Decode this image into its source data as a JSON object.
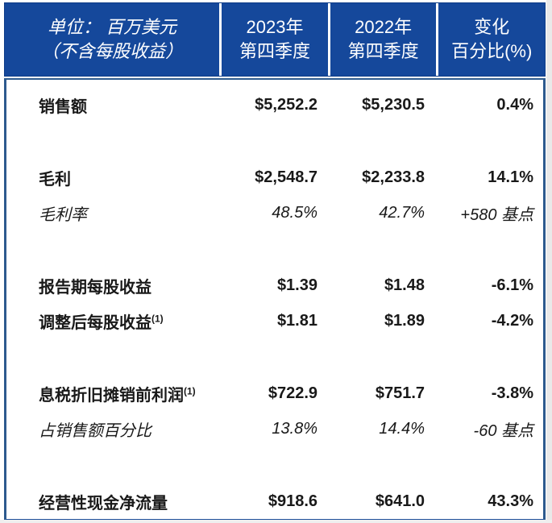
{
  "header": {
    "unit_line1": "单位： 百万美元",
    "unit_line2": "（不含每股收益）",
    "col_2023_line1": "2023年",
    "col_2023_line2": "第四季度",
    "col_2022_line1": "2022年",
    "col_2022_line2": "第四季度",
    "col_change_line1": "变化",
    "col_change_line2": "百分比(%)"
  },
  "colors": {
    "header_bg": "#15489B",
    "header_text": "#FFFFFF",
    "body_border": "#2D5A8E",
    "bottom_border": "#1D4F9A",
    "body_text": "#191919"
  },
  "rows": [
    {
      "label": "销售额",
      "sup": "",
      "q4_2023": "$5,252.2",
      "q4_2022": "$5,230.5",
      "change": "0.4%",
      "emphasis": "bold"
    },
    {
      "label": "毛利",
      "sup": "",
      "q4_2023": "$2,548.7",
      "q4_2022": "$2,233.8",
      "change": "14.1%",
      "emphasis": "bold"
    },
    {
      "label": "毛利率",
      "sup": "",
      "q4_2023": "48.5%",
      "q4_2022": "42.7%",
      "change": "+580 基点",
      "emphasis": "italic"
    },
    {
      "label": "报告期每股收益",
      "sup": "",
      "q4_2023": "$1.39",
      "q4_2022": "$1.48",
      "change": "-6.1%",
      "emphasis": "bold"
    },
    {
      "label": "调整后每股收益",
      "sup": "(1)",
      "q4_2023": "$1.81",
      "q4_2022": "$1.89",
      "change": "-4.2%",
      "emphasis": "bold"
    },
    {
      "label": "息税折旧摊销前利润",
      "sup": "(1)",
      "q4_2023": "$722.9",
      "q4_2022": "$751.7",
      "change": "-3.8%",
      "emphasis": "bold"
    },
    {
      "label": "占销售额百分比",
      "sup": "",
      "q4_2023": "13.8%",
      "q4_2022": "14.4%",
      "change": "-60 基点",
      "emphasis": "italic"
    },
    {
      "label": "经营性现金净流量",
      "sup": "",
      "q4_2023": "$918.6",
      "q4_2022": "$641.0",
      "change": "43.3%",
      "emphasis": "bold"
    }
  ]
}
